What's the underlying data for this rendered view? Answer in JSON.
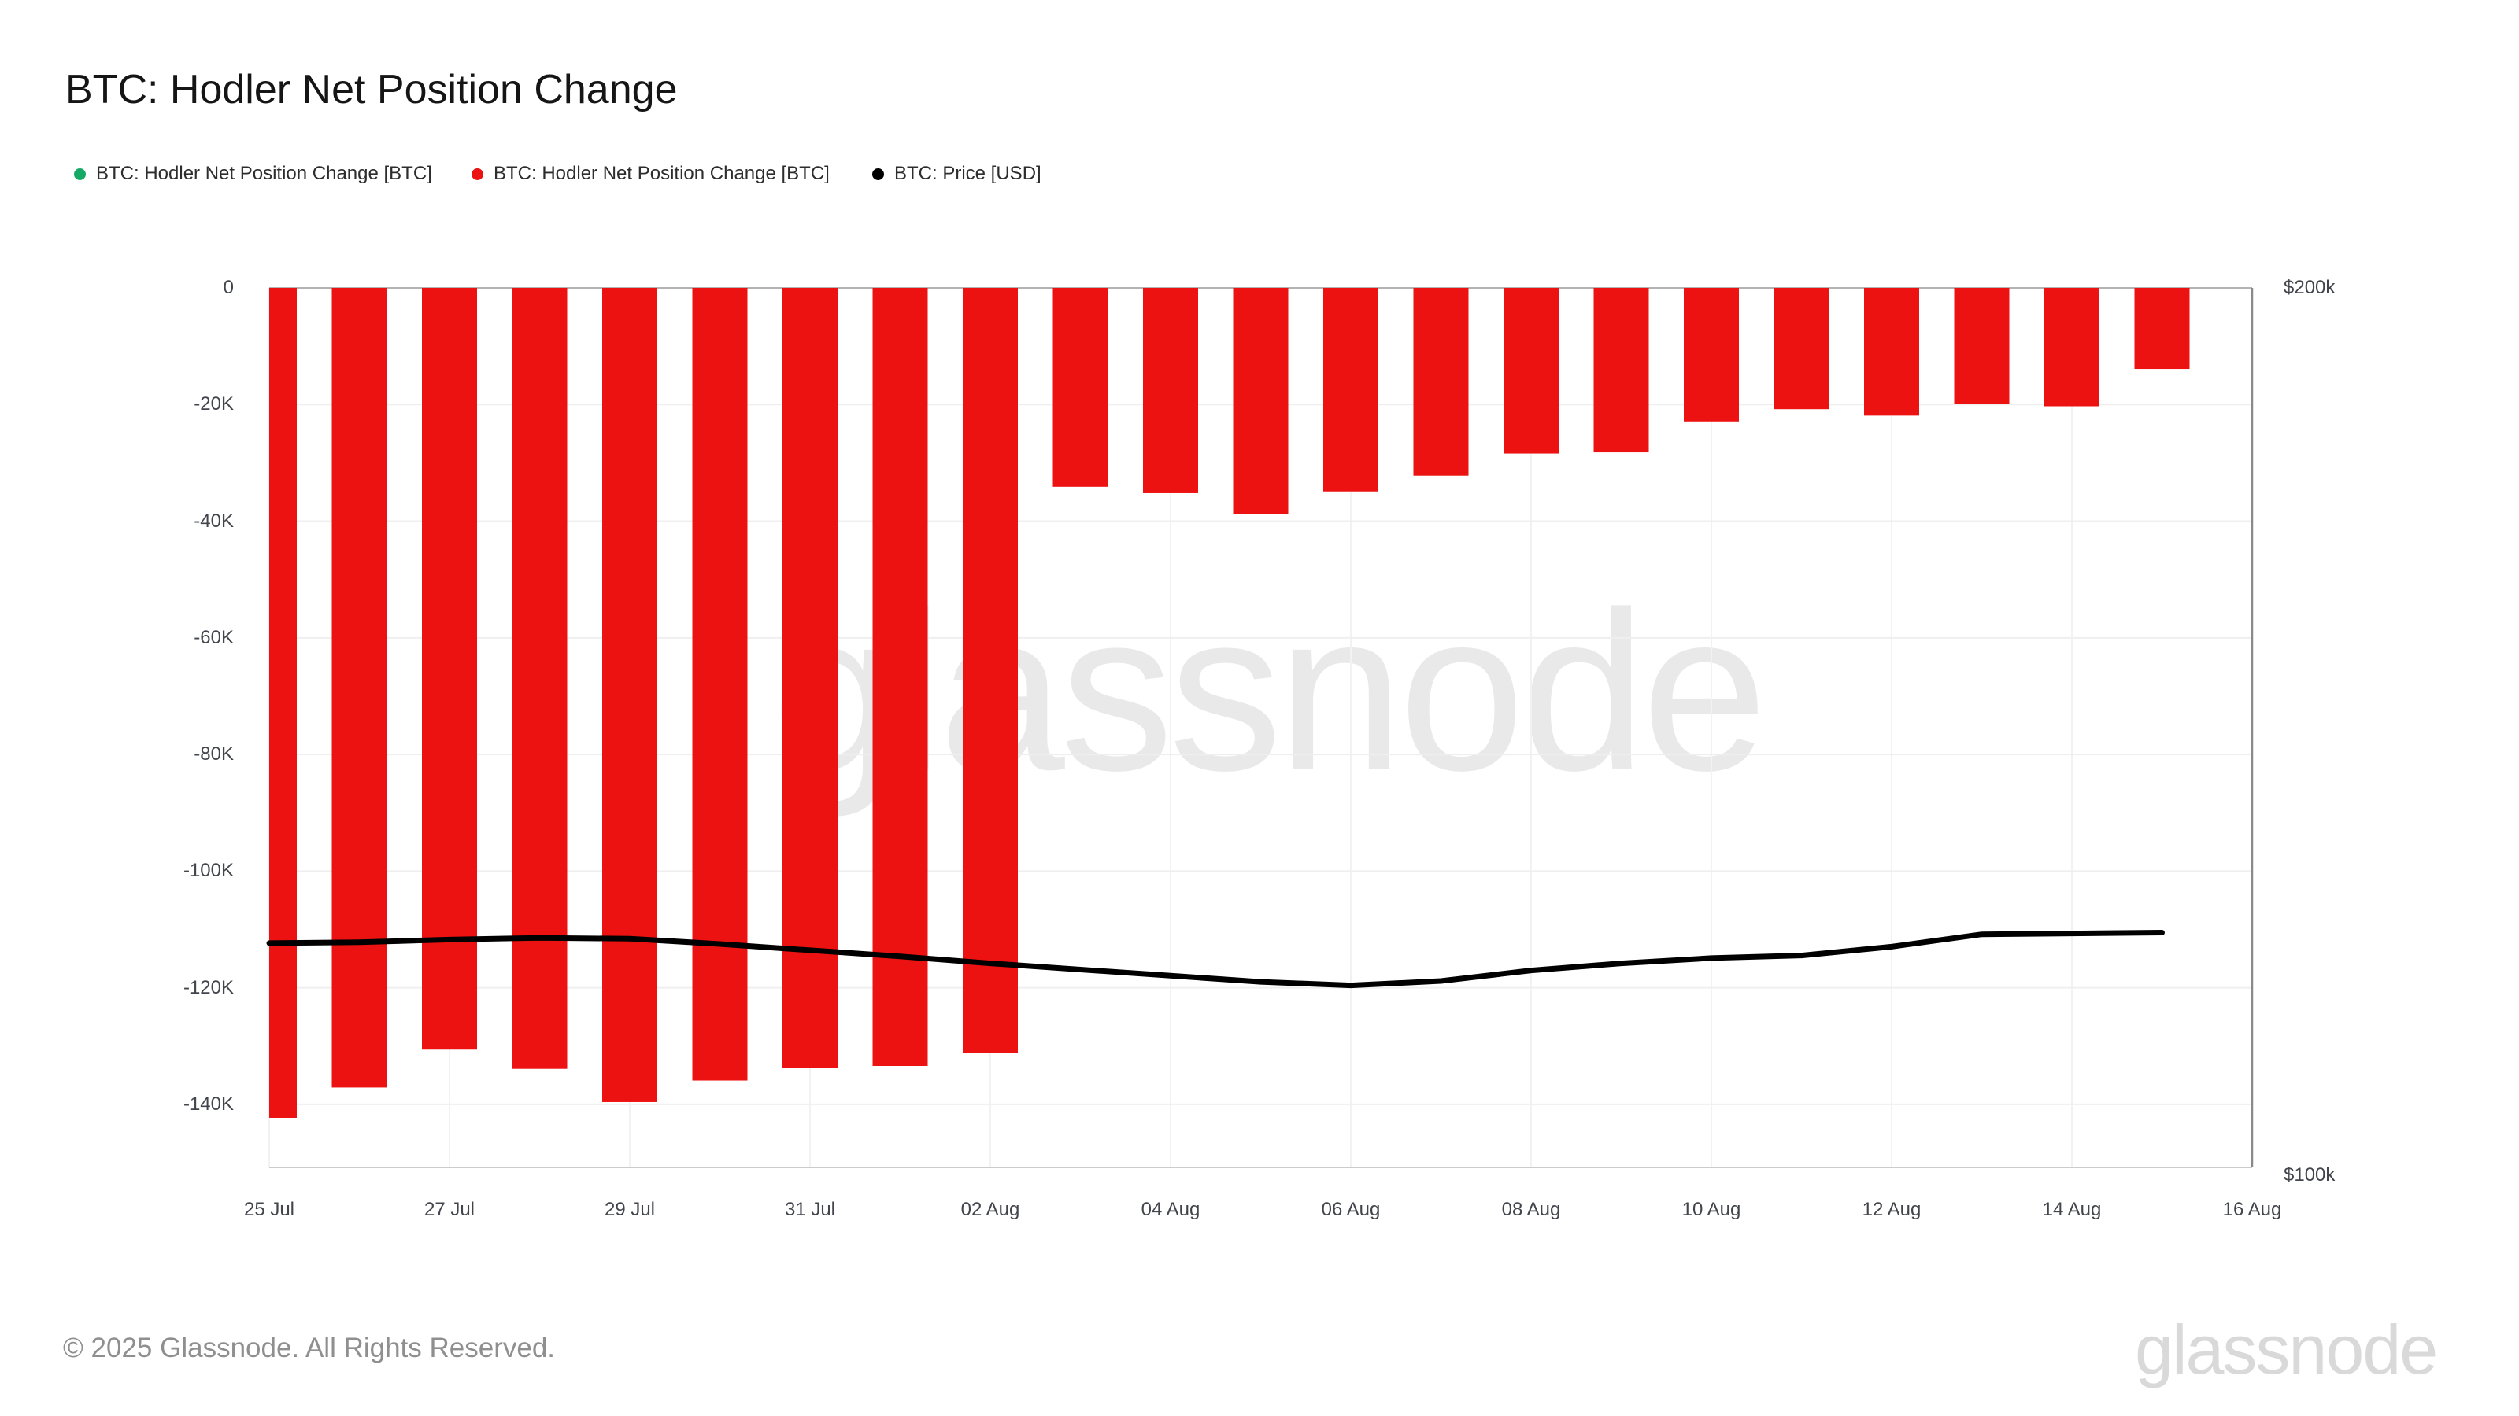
{
  "page": {
    "title": "BTC: Hodler Net Position Change",
    "footer": "© 2025 Glassnode. All Rights Reserved.",
    "watermark": "glassnode",
    "logo_text": "glassnode"
  },
  "legend": {
    "items": [
      {
        "label": "BTC: Hodler Net Position Change [BTC]",
        "color": "#14aa66",
        "marker": "circle"
      },
      {
        "label": "BTC: Hodler Net Position Change [BTC]",
        "color": "#ed1212",
        "marker": "circle"
      },
      {
        "label": "BTC: Price [USD]",
        "color": "#000000",
        "marker": "circle"
      }
    ]
  },
  "chart_data": {
    "type": "bar+line",
    "title": "BTC: Hodler Net Position Change",
    "dates": [
      "25 Jul",
      "26 Jul",
      "27 Jul",
      "28 Jul",
      "29 Jul",
      "30 Jul",
      "31 Jul",
      "01 Aug",
      "02 Aug",
      "03 Aug",
      "04 Aug",
      "05 Aug",
      "06 Aug",
      "07 Aug",
      "08 Aug",
      "09 Aug",
      "10 Aug",
      "11 Aug",
      "12 Aug",
      "13 Aug",
      "14 Aug",
      "15 Aug"
    ],
    "series": [
      {
        "name": "BTC: Hodler Net Position Change [BTC]",
        "type": "bar",
        "color": "#14aa66",
        "note": "positive-change series, no visible bars in range",
        "values_btc_k": []
      },
      {
        "name": "BTC: Hodler Net Position Change [BTC]",
        "type": "bar",
        "color": "#ed1212",
        "values_btc_k": [
          -142.3,
          -137.1,
          -130.6,
          -133.9,
          -139.6,
          -135.9,
          -133.7,
          -133.4,
          -131.2,
          -34.1,
          -35.2,
          -38.8,
          -34.9,
          -32.2,
          -28.4,
          -28.2,
          -22.9,
          -20.8,
          -21.9,
          -19.9,
          -20.3,
          -13.9
        ]
      },
      {
        "name": "BTC: Price [USD]",
        "type": "line",
        "color": "#000000",
        "values_usd_k": [
          125.5,
          125.6,
          125.9,
          126.1,
          126.0,
          125.4,
          124.7,
          124.0,
          123.2,
          122.5,
          121.8,
          121.1,
          120.7,
          121.2,
          122.4,
          123.2,
          123.8,
          124.1,
          125.1,
          126.5,
          126.6,
          126.7
        ]
      }
    ],
    "left_axis": {
      "tick_labels": [
        "0",
        "-20K",
        "-40K",
        "-60K",
        "-80K",
        "-100K",
        "-120K",
        "-140K"
      ],
      "tick_values_k": [
        0,
        -20,
        -40,
        -60,
        -80,
        -100,
        -120,
        -140
      ],
      "ylim_k": [
        -150.8,
        0
      ],
      "grid": true
    },
    "right_axis": {
      "tick_labels": [
        "$200k",
        "$100k"
      ],
      "tick_values_usd_k": [
        200,
        100
      ],
      "ylim_usd_k": [
        100,
        200
      ]
    },
    "x_axis": {
      "tick_labels": [
        "25 Jul",
        "27 Jul",
        "29 Jul",
        "31 Jul",
        "02 Aug",
        "04 Aug",
        "06 Aug",
        "08 Aug",
        "10 Aug",
        "12 Aug",
        "14 Aug",
        "16 Aug"
      ],
      "tick_step_days": 2,
      "grid": true
    },
    "legend_position": "top-left"
  },
  "colors": {
    "bar_red": "#ed1212",
    "price_line": "#000000",
    "grid_h": "#efefef",
    "grid_v": "#f2f2f2",
    "axis_top": "#b3b3b3",
    "axis_bottom": "#cccccc",
    "axis_right": "#8a8a8a",
    "axis_text": "#42454c"
  }
}
